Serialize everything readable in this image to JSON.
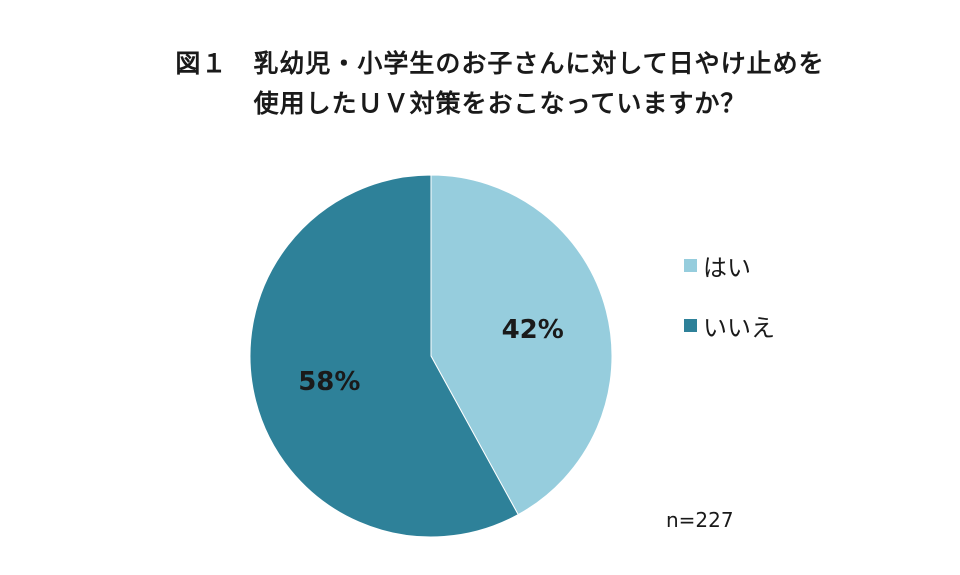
{
  "chart_data": {
    "type": "pie",
    "title_lines": [
      "図１　乳幼児・小学生のお子さんに対して日やけ止めを",
      "使用したＵＶ対策をおこなっていますか？"
    ],
    "categories": [
      "はい",
      "いいえ"
    ],
    "values": [
      42,
      58
    ],
    "value_labels": [
      "42%",
      "58%"
    ],
    "colors": [
      "#96cddd",
      "#2e8199"
    ],
    "legend_position": "right",
    "note": "n=227"
  }
}
